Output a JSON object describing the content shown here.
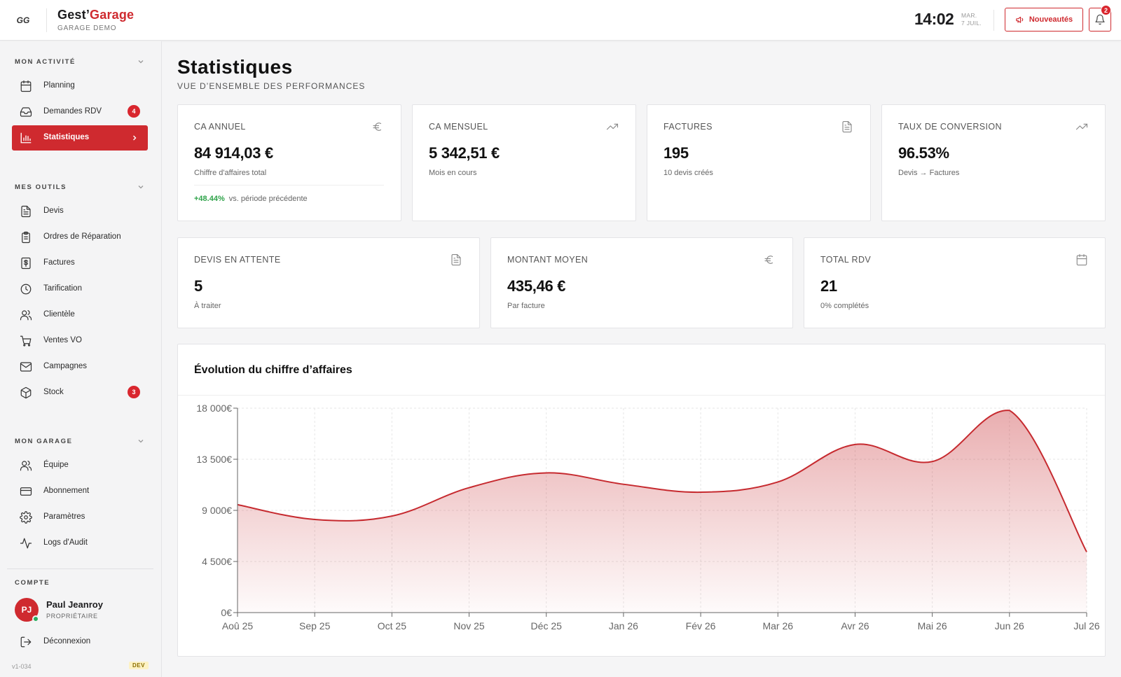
{
  "header": {
    "logo_text": "GG",
    "brand_part1": "Gest’",
    "brand_part2": "Garage",
    "subtitle": "GARAGE DEMO",
    "time": "14:02",
    "day": "MAR.",
    "date": "7 JUIL.",
    "news_label": "Nouveautés",
    "notif_count": "2"
  },
  "sidebar": {
    "sections": [
      {
        "title": "MON ACTIVITÉ",
        "items": [
          {
            "label": "Planning",
            "icon": "calendar-icon"
          },
          {
            "label": "Demandes RDV",
            "icon": "inbox-icon",
            "badge": "4"
          },
          {
            "label": "Statistiques",
            "icon": "bar-chart-icon",
            "active": true
          }
        ]
      },
      {
        "title": "MES OUTILS",
        "items": [
          {
            "label": "Devis",
            "icon": "document-icon"
          },
          {
            "label": "Ordres de Réparation",
            "icon": "clipboard-icon"
          },
          {
            "label": "Factures",
            "icon": "dollar-document-icon"
          },
          {
            "label": "Tarification",
            "icon": "clock-icon"
          },
          {
            "label": "Clientèle",
            "icon": "users-icon"
          },
          {
            "label": "Ventes VO",
            "icon": "cart-icon"
          },
          {
            "label": "Campagnes",
            "icon": "mail-icon"
          },
          {
            "label": "Stock",
            "icon": "box-icon",
            "badge": "3"
          }
        ]
      },
      {
        "title": "MON GARAGE",
        "items": [
          {
            "label": "Équipe",
            "icon": "users-icon"
          },
          {
            "label": "Abonnement",
            "icon": "credit-card-icon"
          },
          {
            "label": "Paramètres",
            "icon": "gear-icon"
          },
          {
            "label": "Logs d'Audit",
            "icon": "activity-icon"
          }
        ]
      }
    ],
    "account": {
      "title": "COMPTE",
      "initials": "PJ",
      "name": "Paul Jeanroy",
      "role": "PROPRIÉTAIRE",
      "logout_label": "Déconnexion",
      "version": "v1-034",
      "env_tag": "DEV"
    }
  },
  "main": {
    "title": "Statistiques",
    "subtitle": "VUE D’ENSEMBLE DES PERFORMANCES",
    "kpis_row1": [
      {
        "label": "CA ANNUEL",
        "value": "84 914,03 €",
        "desc": "Chiffre d'affaires total",
        "icon": "euro-icon",
        "trend_value": "+48.44%",
        "trend_text": "vs. période précédente"
      },
      {
        "label": "CA MENSUEL",
        "value": "5 342,51 €",
        "desc": "Mois en cours",
        "icon": "trending-up-icon"
      },
      {
        "label": "FACTURES",
        "value": "195",
        "desc": "10 devis créés",
        "icon": "document-icon"
      },
      {
        "label": "TAUX DE CONVERSION",
        "value": "96.53%",
        "desc": "Devis → Factures",
        "icon": "trending-up-icon"
      }
    ],
    "kpis_row2": [
      {
        "label": "DEVIS EN ATTENTE",
        "value": "5",
        "desc": "À traiter",
        "icon": "document-icon"
      },
      {
        "label": "MONTANT MOYEN",
        "value": "435,46 €",
        "desc": "Par facture",
        "icon": "euro-icon"
      },
      {
        "label": "TOTAL RDV",
        "value": "21",
        "desc": "0% complétés",
        "icon": "calendar-icon"
      }
    ],
    "chart_title": "Évolution du chiffre d’affaires"
  },
  "chart_data": {
    "type": "area",
    "title": "Évolution du chiffre d’affaires",
    "categories": [
      "Aoû 25",
      "Sep 25",
      "Oct 25",
      "Nov 25",
      "Déc 25",
      "Jan 26",
      "Fév 26",
      "Mar 26",
      "Avr 26",
      "Mai 26",
      "Jun 26",
      "Jul 26"
    ],
    "values": [
      9500,
      8200,
      8500,
      11000,
      12300,
      11300,
      10600,
      11500,
      14800,
      13300,
      17800,
      5342.51
    ],
    "ylim": [
      0,
      18000
    ],
    "yticks": [
      0,
      4500,
      9000,
      13500,
      18000
    ],
    "ytick_labels": [
      "0€",
      "4 500€",
      "9 000€",
      "13 500€",
      "18 000€"
    ],
    "grid": true,
    "color": "#c62a2f"
  }
}
